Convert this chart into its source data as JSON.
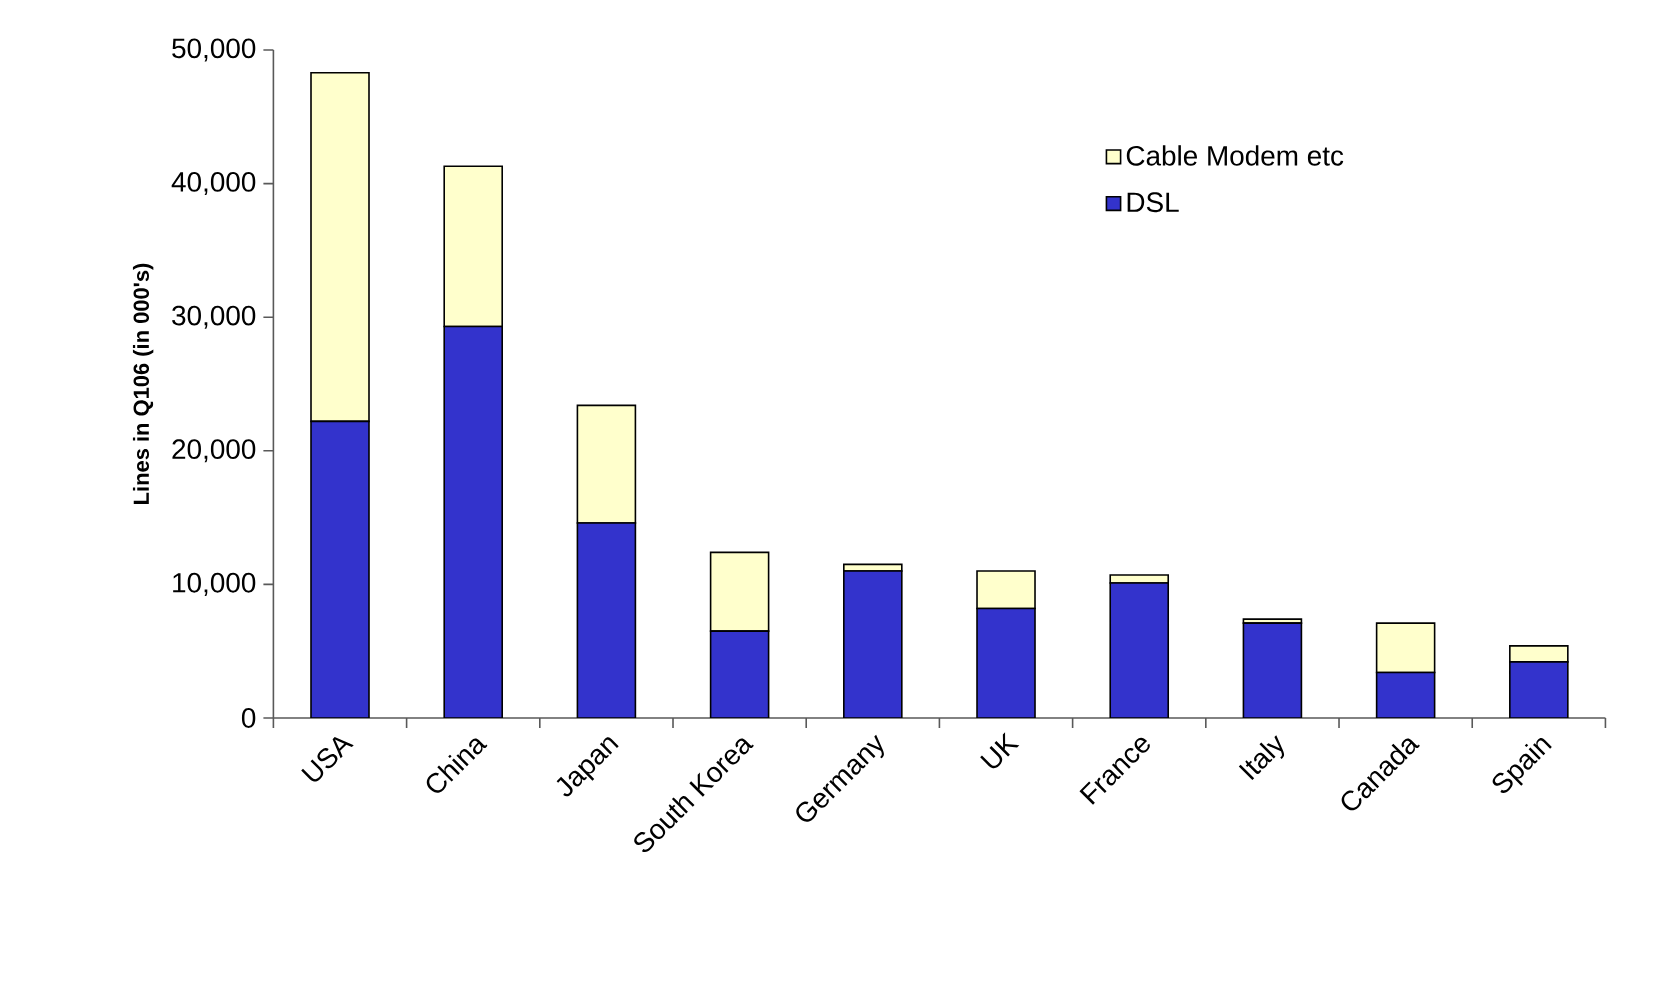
{
  "chart_data": {
    "type": "bar",
    "stacked": true,
    "categories": [
      "USA",
      "China",
      "Japan",
      "South Korea",
      "Germany",
      "UK",
      "France",
      "Italy",
      "Canada",
      "Spain"
    ],
    "series": [
      {
        "name": "DSL",
        "color": "#3333cc",
        "values": [
          22200,
          29300,
          14600,
          6500,
          11000,
          8200,
          10100,
          7100,
          3400,
          4200
        ]
      },
      {
        "name": "Cable Modem etc",
        "color": "#ffffcc",
        "values": [
          26100,
          12000,
          8800,
          5900,
          500,
          2800,
          600,
          300,
          3700,
          1200
        ]
      }
    ],
    "ylabel": "Lines in Q106 (in 000's)",
    "ylim": [
      0,
      50000
    ],
    "yticks": [
      {
        "value": 0,
        "label": "0"
      },
      {
        "value": 10000,
        "label": "10,000"
      },
      {
        "value": 20000,
        "label": "20,000"
      },
      {
        "value": 30000,
        "label": "30,000"
      },
      {
        "value": 40000,
        "label": "40,000"
      },
      {
        "value": 50000,
        "label": "50,000"
      }
    ],
    "grid": false,
    "legend": "top right"
  }
}
